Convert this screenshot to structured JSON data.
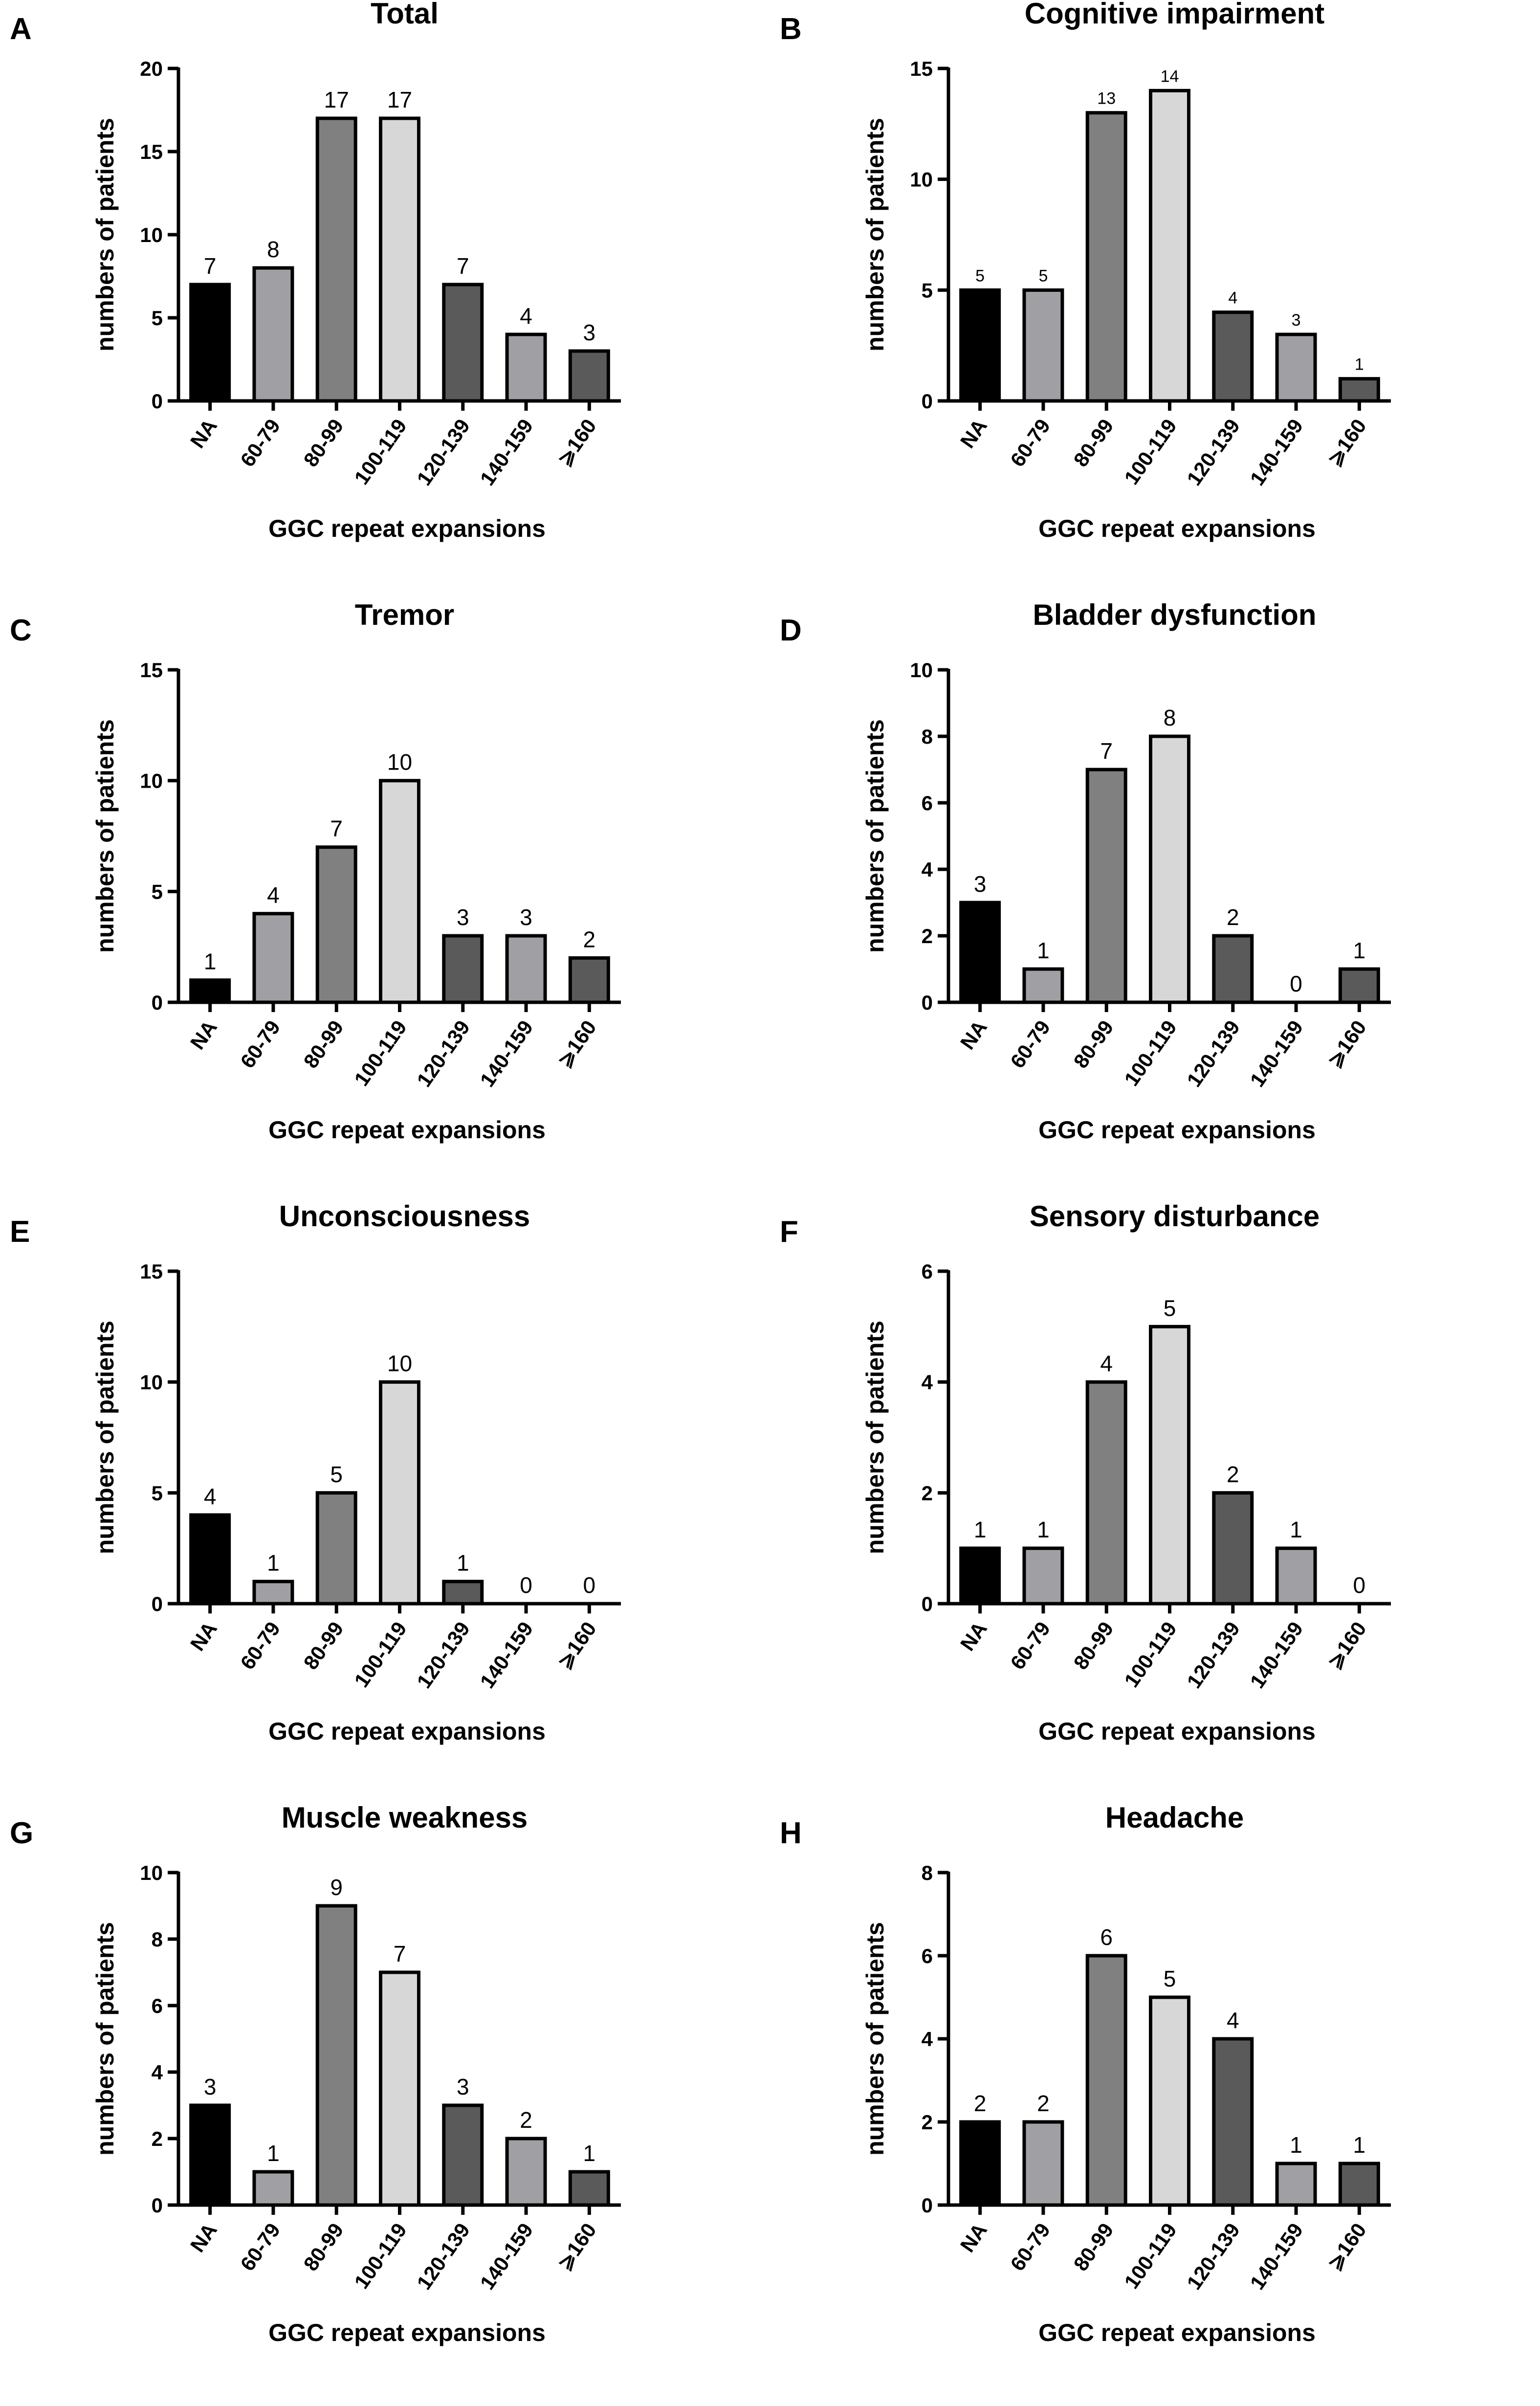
{
  "bar_colors": [
    "#000000",
    "#a0a0a4",
    "#808080",
    "#d7d7d7",
    "#5a5a5a",
    "#a0a0a4",
    "#5a5a5a"
  ],
  "chart_data": [
    {
      "panel": "A",
      "type": "bar",
      "title": "Total",
      "xlabel": "GGC repeat expansions",
      "ylabel": "numbers of patients",
      "categories": [
        "NA",
        "60-79",
        "80-99",
        "100-119",
        "120-139",
        "140-159",
        "⩾160"
      ],
      "values": [
        7,
        8,
        17,
        17,
        7,
        4,
        3
      ],
      "ylim": [
        0,
        20
      ],
      "yticks": [
        0,
        5,
        10,
        15,
        20
      ],
      "label_size": "large"
    },
    {
      "panel": "B",
      "type": "bar",
      "title": "Cognitive impairment",
      "xlabel": "GGC repeat expansions",
      "ylabel": "numbers of patients",
      "categories": [
        "NA",
        "60-79",
        "80-99",
        "100-119",
        "120-139",
        "140-159",
        "⩾160"
      ],
      "values": [
        5,
        5,
        13,
        14,
        4,
        3,
        1
      ],
      "ylim": [
        0,
        15
      ],
      "yticks": [
        0,
        5,
        10,
        15
      ],
      "label_size": "small"
    },
    {
      "panel": "C",
      "type": "bar",
      "title": "Tremor",
      "xlabel": "GGC repeat expansions",
      "ylabel": "numbers of patients",
      "categories": [
        "NA",
        "60-79",
        "80-99",
        "100-119",
        "120-139",
        "140-159",
        "⩾160"
      ],
      "values": [
        1,
        4,
        7,
        10,
        3,
        3,
        2
      ],
      "ylim": [
        0,
        15
      ],
      "yticks": [
        0,
        5,
        10,
        15
      ],
      "label_size": "large"
    },
    {
      "panel": "D",
      "type": "bar",
      "title": "Bladder dysfunction",
      "xlabel": "GGC repeat expansions",
      "ylabel": "numbers of patients",
      "categories": [
        "NA",
        "60-79",
        "80-99",
        "100-119",
        "120-139",
        "140-159",
        "⩾160"
      ],
      "values": [
        3,
        1,
        7,
        8,
        2,
        0,
        1
      ],
      "ylim": [
        0,
        10
      ],
      "yticks": [
        0,
        2,
        4,
        6,
        8,
        10
      ],
      "label_size": "large"
    },
    {
      "panel": "E",
      "type": "bar",
      "title": "Unconsciousness",
      "xlabel": "GGC repeat expansions",
      "ylabel": "numbers of patients",
      "categories": [
        "NA",
        "60-79",
        "80-99",
        "100-119",
        "120-139",
        "140-159",
        "⩾160"
      ],
      "values": [
        4,
        1,
        5,
        10,
        1,
        0,
        0
      ],
      "ylim": [
        0,
        15
      ],
      "yticks": [
        0,
        5,
        10,
        15
      ],
      "label_size": "large"
    },
    {
      "panel": "F",
      "type": "bar",
      "title": "Sensory disturbance",
      "xlabel": "GGC repeat expansions",
      "ylabel": "numbers of patients",
      "categories": [
        "NA",
        "60-79",
        "80-99",
        "100-119",
        "120-139",
        "140-159",
        "⩾160"
      ],
      "values": [
        1,
        1,
        4,
        5,
        2,
        1,
        0
      ],
      "ylim": [
        0,
        6
      ],
      "yticks": [
        0,
        2,
        4,
        6
      ],
      "label_size": "large"
    },
    {
      "panel": "G",
      "type": "bar",
      "title": "Muscle weakness",
      "xlabel": "GGC repeat expansions",
      "ylabel": "numbers of patients",
      "categories": [
        "NA",
        "60-79",
        "80-99",
        "100-119",
        "120-139",
        "140-159",
        "⩾160"
      ],
      "values": [
        3,
        1,
        9,
        7,
        3,
        2,
        1
      ],
      "ylim": [
        0,
        10
      ],
      "yticks": [
        0,
        2,
        4,
        6,
        8,
        10
      ],
      "label_size": "large"
    },
    {
      "panel": "H",
      "type": "bar",
      "title": "Headache",
      "xlabel": "GGC repeat expansions",
      "ylabel": "numbers of patients",
      "categories": [
        "NA",
        "60-79",
        "80-99",
        "100-119",
        "120-139",
        "140-159",
        "⩾160"
      ],
      "values": [
        2,
        2,
        6,
        5,
        4,
        1,
        1
      ],
      "ylim": [
        0,
        8
      ],
      "yticks": [
        0,
        2,
        4,
        6,
        8
      ],
      "label_size": "large"
    }
  ]
}
